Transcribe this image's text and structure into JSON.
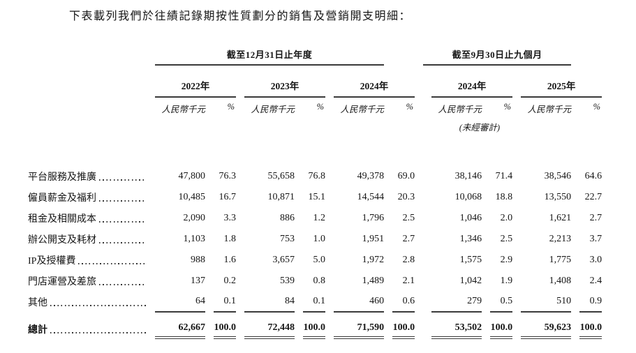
{
  "title": "下表載列我們於往績記錄期按性質劃分的銷售及營銷開支明細：",
  "table": {
    "groups": [
      {
        "label": "截至12月31日止年度"
      },
      {
        "label": "截至9月30日止九個月"
      }
    ],
    "years": [
      "2022年",
      "2023年",
      "2024年",
      "2024年",
      "2025年"
    ],
    "subheader": {
      "amount": "人民幣千元",
      "percent": "%",
      "unaudited": "(未經審計)"
    },
    "rows": [
      {
        "label": "平台服務及推廣",
        "values": [
          "47,800",
          "76.3",
          "55,658",
          "76.8",
          "49,378",
          "69.0",
          "38,146",
          "71.4",
          "38,546",
          "64.6"
        ]
      },
      {
        "label": "僱員薪金及福利",
        "values": [
          "10,485",
          "16.7",
          "10,871",
          "15.1",
          "14,544",
          "20.3",
          "10,068",
          "18.8",
          "13,550",
          "22.7"
        ]
      },
      {
        "label": "租金及相關成本",
        "values": [
          "2,090",
          "3.3",
          "886",
          "1.2",
          "1,796",
          "2.5",
          "1,046",
          "2.0",
          "1,621",
          "2.7"
        ]
      },
      {
        "label": "辦公開支及耗材",
        "values": [
          "1,103",
          "1.8",
          "753",
          "1.0",
          "1,951",
          "2.7",
          "1,346",
          "2.5",
          "2,213",
          "3.7"
        ]
      },
      {
        "label": "IP及授權費",
        "values": [
          "988",
          "1.6",
          "3,657",
          "5.0",
          "1,972",
          "2.8",
          "1,575",
          "2.9",
          "1,775",
          "3.0"
        ]
      },
      {
        "label": "門店運營及差旅",
        "values": [
          "137",
          "0.2",
          "539",
          "0.8",
          "1,489",
          "2.1",
          "1,042",
          "1.9",
          "1,408",
          "2.4"
        ]
      },
      {
        "label": "其他",
        "values": [
          "64",
          "0.1",
          "84",
          "0.1",
          "460",
          "0.6",
          "279",
          "0.5",
          "510",
          "0.9"
        ]
      }
    ],
    "total": {
      "label": "總計",
      "values": [
        "62,667",
        "100.0",
        "72,448",
        "100.0",
        "71,590",
        "100.0",
        "53,502",
        "100.0",
        "59,623",
        "100.0"
      ]
    },
    "line_color": "#3a3a3a"
  }
}
